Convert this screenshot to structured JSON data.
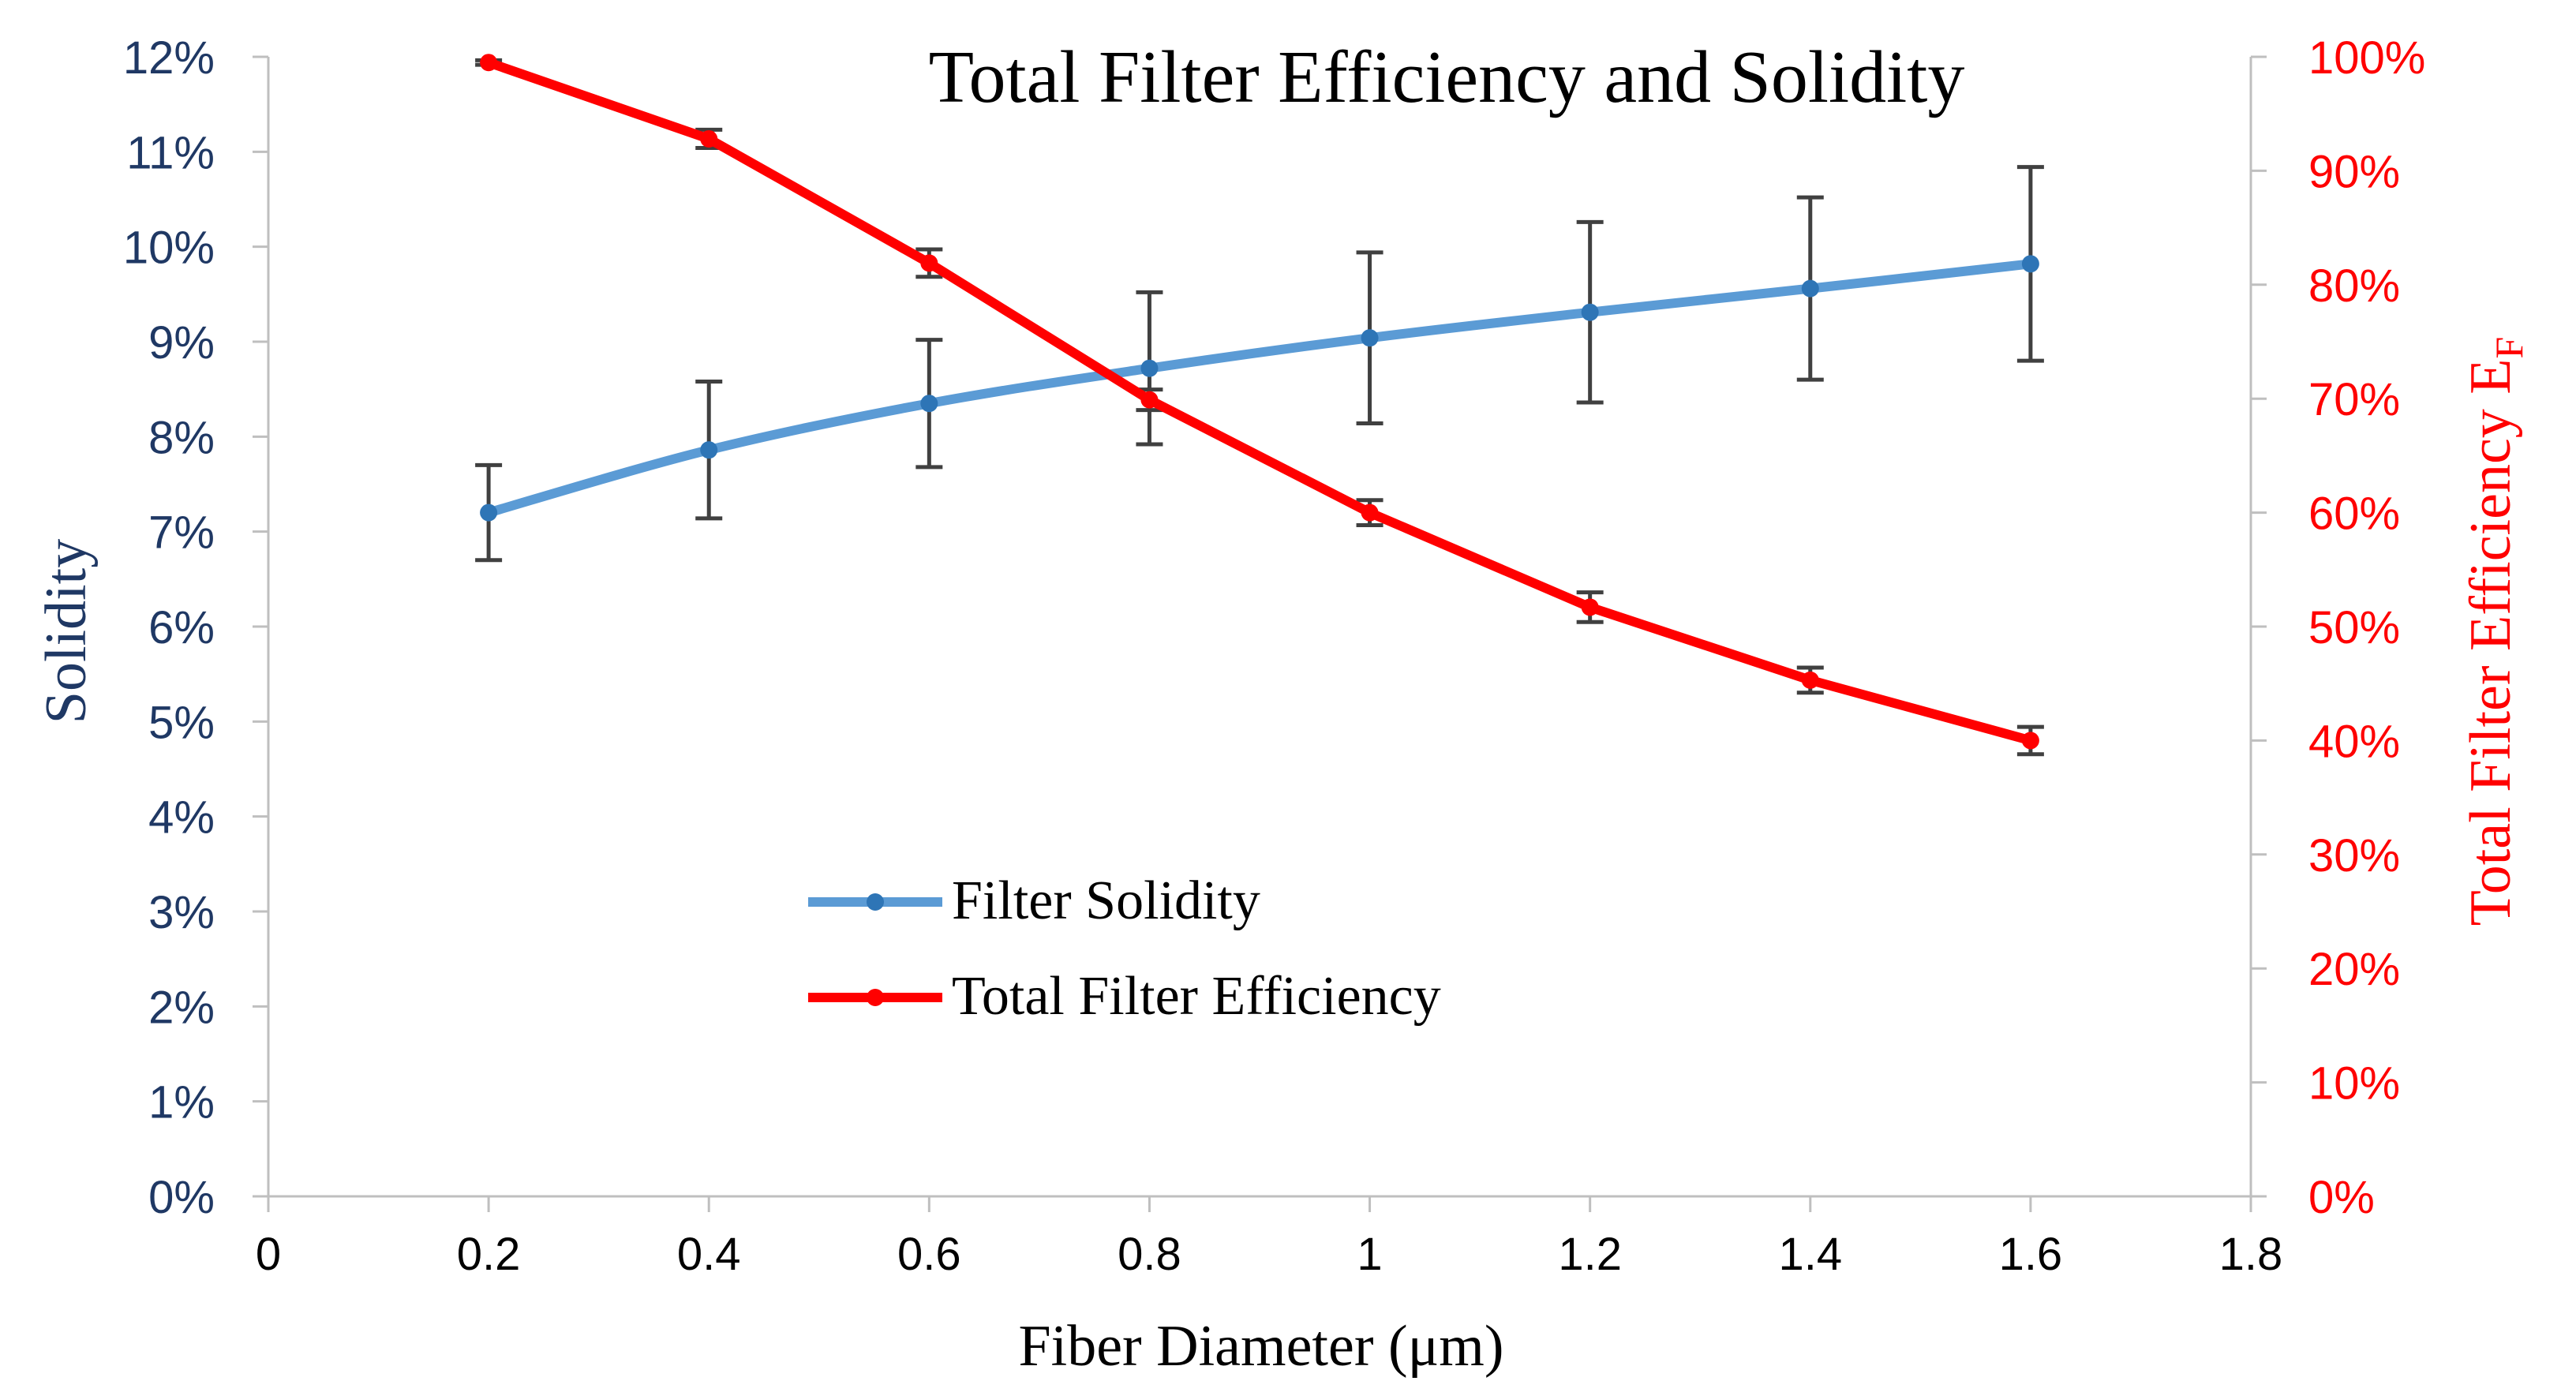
{
  "chart_data": {
    "type": "line",
    "title": "Total Filter Efficiency and Solidity",
    "xlabel": "Fiber Diameter (μm)",
    "ylabel_left": "Solidity",
    "ylabel_right_main": "Total Filter Efficiency E",
    "ylabel_right_sub": "F",
    "x_ticks": [
      "0",
      "0.2",
      "0.4",
      "0.6",
      "0.8",
      "1",
      "1.2",
      "1.4",
      "1.6",
      "1.8"
    ],
    "xlim": [
      0,
      1.8
    ],
    "y_left_ticks": [
      "0%",
      "1%",
      "2%",
      "3%",
      "4%",
      "5%",
      "6%",
      "7%",
      "8%",
      "9%",
      "10%",
      "11%",
      "12%"
    ],
    "ylim_left": [
      0,
      12
    ],
    "y_right_ticks": [
      "0%",
      "10%",
      "20%",
      "30%",
      "40%",
      "50%",
      "60%",
      "70%",
      "80%",
      "90%",
      "100%"
    ],
    "ylim_right": [
      0,
      100
    ],
    "grid": false,
    "legend_position": "center-left",
    "series": [
      {
        "name": "Filter Solidity",
        "axis": "left",
        "color": "#5B9BD5",
        "marker_color": "#2E75B6",
        "x": [
          0.2,
          0.4,
          0.6,
          0.8,
          1.0,
          1.2,
          1.4,
          1.6
        ],
        "values": [
          7.2,
          7.86,
          8.35,
          8.72,
          9.04,
          9.31,
          9.56,
          9.82
        ],
        "error": [
          0.5,
          0.72,
          0.67,
          0.8,
          0.9,
          0.95,
          0.96,
          1.02
        ]
      },
      {
        "name": "Total Filter Efficiency",
        "axis": "right",
        "color": "#FF0000",
        "marker_color": "#FF0000",
        "x": [
          0.2,
          0.4,
          0.6,
          0.8,
          1.0,
          1.2,
          1.4,
          1.6
        ],
        "values": [
          99.5,
          92.8,
          81.9,
          69.9,
          60.0,
          51.7,
          45.3,
          40.0
        ],
        "error": [
          0.2,
          0.8,
          1.2,
          0.9,
          1.1,
          1.3,
          1.1,
          1.2
        ]
      }
    ],
    "colors": {
      "left_axis_text": "#1F3864",
      "right_axis_text": "#FF0000",
      "axis_line": "#BFBFBF",
      "error_bar": "#404040",
      "text": "#000000"
    }
  }
}
